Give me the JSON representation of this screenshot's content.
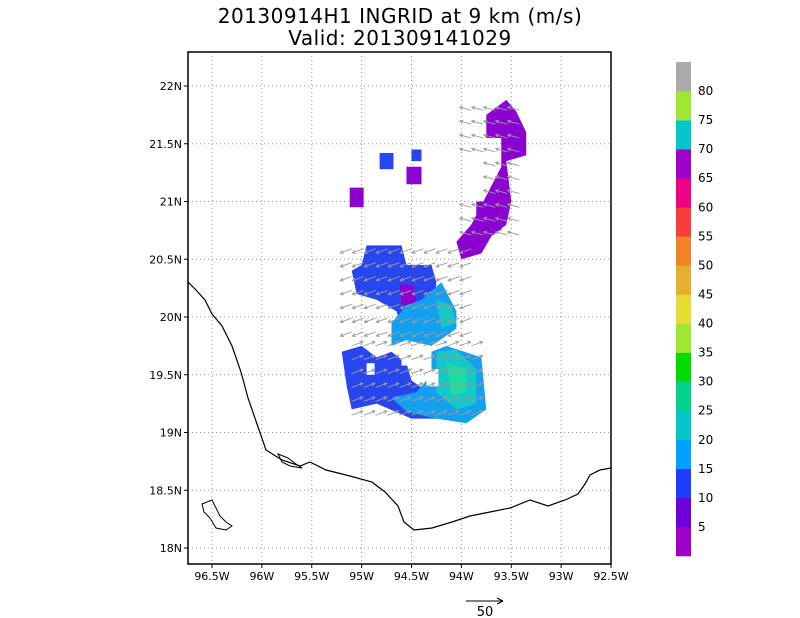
{
  "header": {
    "title": "20130914H1 INGRID at 9 km (m/s)",
    "subtitle": "Valid: 201309141029"
  },
  "chart_data": {
    "type": "heatmap",
    "title": "20130914H1 INGRID at 9 km (m/s)",
    "subtitle": "Valid: 201309141029",
    "xlim": [
      -98.5,
      -92.5
    ],
    "ylim": [
      17.85,
      22.2
    ],
    "x_ticks": [
      -98.5,
      -98,
      -97.5,
      -97,
      -96.5,
      -96,
      -95.5,
      -95,
      -94.5,
      -94,
      -93.5,
      -93,
      -92.5
    ],
    "x_tick_labels": [
      "96.5W",
      "96W",
      "95.5W",
      "95W",
      "94.5W",
      "94W",
      "93.5W",
      "93W",
      "92.5W"
    ],
    "x_tick_values": [
      -96.5,
      -96,
      -95.5,
      -95,
      -94.5,
      -94,
      -93.5,
      -93,
      -92.5
    ],
    "y_tick_labels": [
      "18N",
      "18.5N",
      "19N",
      "19.5N",
      "20N",
      "20.5N",
      "21N",
      "21.5N",
      "22N"
    ],
    "y_tick_values": [
      18,
      18.5,
      19,
      19.5,
      20,
      20.5,
      21,
      21.5,
      22
    ],
    "grid": true,
    "colorbar": {
      "labels": [
        "5",
        "10",
        "15",
        "20",
        "25",
        "30",
        "35",
        "40",
        "45",
        "50",
        "55",
        "60",
        "65",
        "70",
        "75",
        "80"
      ],
      "colors": [
        "#a000c8",
        "#6e00dc",
        "#1e3cff",
        "#00a0ff",
        "#00c8c8",
        "#00d28c",
        "#00dc00",
        "#a0e632",
        "#e6dc32",
        "#e6af2d",
        "#f08228",
        "#fa3c3c",
        "#f00082",
        "#a000c8",
        "#00c8c8",
        "#a0e632",
        "#aaaaaa"
      ]
    },
    "reference_vector": "50",
    "cells_lonlat": [
      {
        "lon": -93.7,
        "lat": 21.6,
        "v": 5
      },
      {
        "lon": -93.55,
        "lat": 21.7,
        "v": 5
      },
      {
        "lon": -93.45,
        "lat": 21.5,
        "v": 5
      },
      {
        "lon": -93.5,
        "lat": 21.2,
        "v": 5
      },
      {
        "lon": -93.55,
        "lat": 20.9,
        "v": 5
      },
      {
        "lon": -93.8,
        "lat": 20.75,
        "v": 5
      },
      {
        "lon": -93.95,
        "lat": 20.55,
        "v": 5
      },
      {
        "lon": -93.4,
        "lat": 21.4,
        "v": 5
      },
      {
        "lon": -95.05,
        "lat": 21.05,
        "v": 5
      },
      {
        "lon": -94.45,
        "lat": 21.25,
        "v": 5
      },
      {
        "lon": -94.7,
        "lat": 21.35,
        "v": 10
      },
      {
        "lon": -94.45,
        "lat": 21.4,
        "v": 10
      },
      {
        "lon": -94.85,
        "lat": 20.35,
        "v": 10
      },
      {
        "lon": -94.65,
        "lat": 20.5,
        "v": 10
      },
      {
        "lon": -94.3,
        "lat": 20.3,
        "v": 10
      },
      {
        "lon": -95.1,
        "lat": 19.5,
        "v": 10
      },
      {
        "lon": -94.8,
        "lat": 19.3,
        "v": 10
      },
      {
        "lon": -94.5,
        "lat": 20.15,
        "v": 5
      },
      {
        "lon": -94.5,
        "lat": 20.0,
        "v": 15
      },
      {
        "lon": -94.25,
        "lat": 19.9,
        "v": 15
      },
      {
        "lon": -94.2,
        "lat": 19.55,
        "v": 20
      },
      {
        "lon": -93.95,
        "lat": 19.35,
        "v": 20
      },
      {
        "lon": -94.2,
        "lat": 19.2,
        "v": 15
      },
      {
        "lon": -94.6,
        "lat": 19.15,
        "v": 15
      },
      {
        "lon": -94.05,
        "lat": 19.5,
        "v": 25
      }
    ]
  }
}
